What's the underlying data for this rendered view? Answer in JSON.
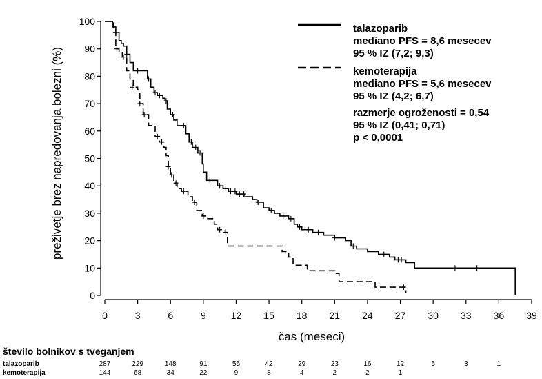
{
  "chart_data": {
    "type": "line",
    "xlabel": "čas (meseci)",
    "ylabel": "preživetje brez napredovanja bolezni (%)",
    "xlim": [
      0,
      39
    ],
    "ylim": [
      0,
      100
    ],
    "x_ticks": [
      "0",
      "3",
      "6",
      "9",
      "12",
      "15",
      "18",
      "21",
      "24",
      "27",
      "30",
      "33",
      "36",
      "39"
    ],
    "y_ticks": [
      "0",
      "10",
      "20",
      "30",
      "40",
      "50",
      "60",
      "70",
      "80",
      "90",
      "100"
    ],
    "grid": false,
    "legend_position": "top-right",
    "series": [
      {
        "name": "talazoparib",
        "line_style": "solid",
        "steps": [
          [
            0,
            100
          ],
          [
            0.6,
            100
          ],
          [
            0.7,
            98
          ],
          [
            1.0,
            96
          ],
          [
            1.3,
            93
          ],
          [
            1.5,
            92
          ],
          [
            1.7,
            91
          ],
          [
            2.0,
            88
          ],
          [
            2.3,
            85
          ],
          [
            2.6,
            82
          ],
          [
            3.0,
            82
          ],
          [
            3.5,
            82
          ],
          [
            3.9,
            79
          ],
          [
            4.2,
            76
          ],
          [
            4.5,
            74
          ],
          [
            4.8,
            73
          ],
          [
            5.3,
            72
          ],
          [
            5.5,
            71
          ],
          [
            5.7,
            68
          ],
          [
            6.0,
            66
          ],
          [
            6.3,
            64
          ],
          [
            6.6,
            62
          ],
          [
            7.0,
            62
          ],
          [
            7.4,
            59
          ],
          [
            7.7,
            56
          ],
          [
            8.0,
            54
          ],
          [
            8.5,
            52
          ],
          [
            8.9,
            48
          ],
          [
            9.0,
            45
          ],
          [
            9.3,
            42
          ],
          [
            9.8,
            42
          ],
          [
            10.3,
            40
          ],
          [
            10.8,
            39
          ],
          [
            11.3,
            38
          ],
          [
            12.0,
            37
          ],
          [
            12.8,
            36
          ],
          [
            13.5,
            35
          ],
          [
            13.9,
            34
          ],
          [
            14.5,
            32
          ],
          [
            15.0,
            31
          ],
          [
            15.5,
            30
          ],
          [
            16.0,
            29
          ],
          [
            16.8,
            28
          ],
          [
            17.3,
            26
          ],
          [
            17.6,
            25
          ],
          [
            18.0,
            24
          ],
          [
            19.0,
            23
          ],
          [
            20.0,
            22
          ],
          [
            21.0,
            21
          ],
          [
            22.0,
            20
          ],
          [
            22.5,
            18
          ],
          [
            23.0,
            17
          ],
          [
            24.0,
            16
          ],
          [
            25.0,
            15
          ],
          [
            26.0,
            14
          ],
          [
            26.5,
            13
          ],
          [
            27.5,
            12
          ],
          [
            28.3,
            10
          ],
          [
            30.0,
            10
          ],
          [
            33.0,
            10
          ],
          [
            36.0,
            10
          ],
          [
            37.5,
            10
          ],
          [
            37.5,
            0
          ]
        ],
        "censored": [
          [
            1.0,
            96
          ],
          [
            2.0,
            88
          ],
          [
            3.0,
            82
          ],
          [
            4.0,
            79
          ],
          [
            4.6,
            74
          ],
          [
            5.0,
            73
          ],
          [
            5.6,
            71
          ],
          [
            6.2,
            66
          ],
          [
            7.2,
            62
          ],
          [
            7.9,
            56
          ],
          [
            8.3,
            54
          ],
          [
            8.7,
            52
          ],
          [
            9.6,
            42
          ],
          [
            10.5,
            40
          ],
          [
            11.0,
            39
          ],
          [
            11.5,
            38
          ],
          [
            11.9,
            38
          ],
          [
            12.3,
            37
          ],
          [
            12.7,
            37
          ],
          [
            14.0,
            34
          ],
          [
            15.2,
            31
          ],
          [
            16.3,
            29
          ],
          [
            17.0,
            28
          ],
          [
            17.8,
            25
          ],
          [
            18.3,
            24
          ],
          [
            18.6,
            24
          ],
          [
            19.5,
            23
          ],
          [
            21.0,
            21
          ],
          [
            22.7,
            18
          ],
          [
            25.5,
            15
          ],
          [
            26.8,
            13
          ],
          [
            27.1,
            13
          ],
          [
            32.0,
            10
          ],
          [
            34.0,
            10
          ]
        ]
      },
      {
        "name": "kemoterapija",
        "line_style": "dashed",
        "steps": [
          [
            0,
            100
          ],
          [
            0.6,
            100
          ],
          [
            0.8,
            96
          ],
          [
            1.0,
            90
          ],
          [
            1.3,
            89
          ],
          [
            1.6,
            87
          ],
          [
            2.0,
            82
          ],
          [
            2.3,
            79
          ],
          [
            2.6,
            76
          ],
          [
            3.0,
            75
          ],
          [
            3.2,
            70
          ],
          [
            3.5,
            66
          ],
          [
            4.0,
            62
          ],
          [
            4.6,
            58
          ],
          [
            5.0,
            56
          ],
          [
            5.4,
            54
          ],
          [
            5.6,
            51
          ],
          [
            5.8,
            47
          ],
          [
            6.0,
            44
          ],
          [
            6.3,
            41
          ],
          [
            6.6,
            39
          ],
          [
            7.0,
            38
          ],
          [
            7.6,
            36
          ],
          [
            8.0,
            34
          ],
          [
            8.4,
            31
          ],
          [
            8.9,
            29
          ],
          [
            9.4,
            28
          ],
          [
            10.0,
            26
          ],
          [
            10.3,
            24
          ],
          [
            11.0,
            23
          ],
          [
            11.2,
            18
          ],
          [
            12.0,
            18
          ],
          [
            16.0,
            18
          ],
          [
            16.2,
            16
          ],
          [
            16.8,
            14
          ],
          [
            17.2,
            11
          ],
          [
            18.5,
            11
          ],
          [
            18.5,
            9
          ],
          [
            20.0,
            9
          ],
          [
            21.0,
            8
          ],
          [
            21.4,
            5
          ],
          [
            24.0,
            5
          ],
          [
            24.7,
            3
          ],
          [
            27.0,
            3
          ],
          [
            27.5,
            3
          ],
          [
            27.5,
            1
          ]
        ],
        "censored": [
          [
            1.1,
            90
          ],
          [
            1.7,
            87
          ],
          [
            2.5,
            76
          ],
          [
            3.2,
            70
          ],
          [
            3.6,
            66
          ],
          [
            4.8,
            58
          ],
          [
            5.2,
            56
          ],
          [
            5.8,
            47
          ],
          [
            6.1,
            44
          ],
          [
            6.5,
            41
          ],
          [
            7.2,
            38
          ],
          [
            8.2,
            34
          ],
          [
            9.0,
            29
          ],
          [
            10.5,
            24
          ],
          [
            11.0,
            23
          ],
          [
            27.3,
            3
          ]
        ]
      }
    ],
    "legend": {
      "entries": [
        {
          "label": "talazoparib",
          "style": "solid",
          "lines": [
            "mediano PFS = 8,6 mesecev",
            "95 % IZ (7,2; 9,3)"
          ]
        },
        {
          "label": "kemoterapija",
          "style": "dashed",
          "lines": [
            "mediano PFS = 5,6 mesecev",
            "95 % IZ (4,2; 6,7)"
          ]
        }
      ],
      "extra_lines": [
        "razmerje ogroženosti = 0,54",
        "95 % IZ (0,41;  0,71)",
        "p < 0,0001"
      ]
    },
    "at_risk": {
      "title": "število bolnikov s tveganjem",
      "rows": [
        {
          "label": "talazoparib",
          "values": [
            "287",
            "229",
            "148",
            "91",
            "55",
            "42",
            "29",
            "23",
            "16",
            "12",
            "5",
            "3",
            "1"
          ]
        },
        {
          "label": "kemoterapija",
          "values": [
            "144",
            "68",
            "34",
            "22",
            "9",
            "8",
            "4",
            "2",
            "2",
            "1"
          ]
        }
      ]
    }
  }
}
